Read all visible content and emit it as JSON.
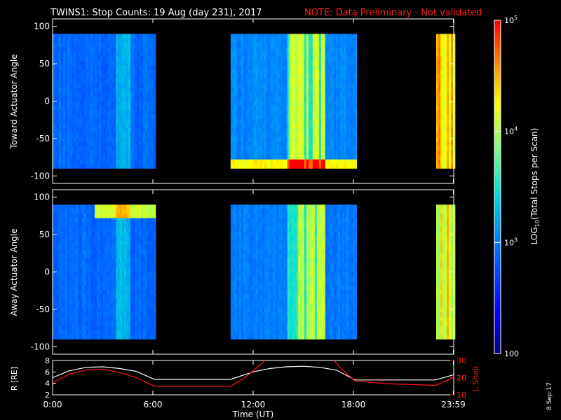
{
  "header": {
    "title": "TWINS1: Stop Counts: 19 Aug (day 231), 2017",
    "note": "NOTE: Data Preliminary - Not validated",
    "note_color": "#ff2020",
    "datestamp": "8 Sep 17"
  },
  "chart_data": [
    {
      "type": "heatmap",
      "ylabel": "Toward Actuator Angle",
      "ylim": [
        -110,
        110
      ],
      "yticks": [
        -100,
        -50,
        0,
        50,
        100
      ],
      "xlim": [
        0,
        24
      ],
      "data_extent": {
        "y": [
          -90,
          90
        ]
      },
      "segments": [
        {
          "t_start": 0.0,
          "t_end": 6.15,
          "base_level": 0.3
        },
        {
          "t_start": 10.65,
          "t_end": 18.15,
          "base_level": 0.35
        },
        {
          "t_start": 22.95,
          "t_end": 24.0,
          "base_level": 0.82
        }
      ]
    },
    {
      "type": "heatmap",
      "ylabel": "Away Actuator Angle",
      "ylim": [
        -110,
        110
      ],
      "yticks": [
        -100,
        -50,
        0,
        50,
        100
      ],
      "xlim": [
        0,
        24
      ],
      "data_extent": {
        "y": [
          -90,
          90
        ]
      },
      "segments": [
        {
          "t_start": 0.0,
          "t_end": 6.15,
          "base_level": 0.3
        },
        {
          "t_start": 10.65,
          "t_end": 18.15,
          "base_level": 0.33
        },
        {
          "t_start": 22.95,
          "t_end": 24.0,
          "base_level": 0.75
        }
      ]
    },
    {
      "type": "line",
      "xlabel": "Time (UT)",
      "xticks": [
        {
          "t": 0,
          "label": "0:00"
        },
        {
          "t": 6,
          "label": "6:00"
        },
        {
          "t": 12,
          "label": "12:00"
        },
        {
          "t": 18,
          "label": "18:00"
        },
        {
          "t": 23.98,
          "label": "23:59"
        }
      ],
      "ylabel_left": "R [RE]",
      "ylim_left": [
        2,
        8
      ],
      "yticks_left": [
        2,
        4,
        6,
        8
      ],
      "ylabel_right": "L Shell",
      "ylim_right": [
        10,
        30
      ],
      "yticks_right": [
        10,
        20,
        30
      ],
      "series": [
        {
          "axis": "left",
          "color": "#ffffff",
          "x": [
            0,
            1,
            2,
            3,
            4,
            5,
            6.1,
            8,
            10.65,
            12,
            13,
            14,
            15,
            16,
            17,
            18.1,
            20,
            22.9,
            24
          ],
          "y": [
            5.0,
            6.2,
            6.8,
            6.9,
            6.6,
            6.1,
            4.7,
            4.7,
            4.7,
            6.0,
            6.6,
            6.9,
            7.0,
            6.8,
            6.3,
            4.6,
            4.6,
            4.6,
            5.5
          ]
        },
        {
          "axis": "right",
          "color": "#ff1a1a",
          "x": [
            0,
            1,
            2,
            3,
            4,
            5,
            6.1,
            8,
            10.65,
            11.5,
            12.5,
            13.0,
            16.6,
            17.2,
            18.1,
            20,
            22.9,
            24
          ],
          "y": [
            17,
            22,
            24.5,
            25,
            23,
            20,
            15,
            15,
            15,
            20,
            28,
            33,
            33,
            26,
            18,
            16.5,
            15.5,
            20
          ]
        }
      ]
    }
  ],
  "colorbar": {
    "label": "LOG10(Total Stops per Scan)",
    "ticks": [
      {
        "label": "100",
        "value": 100
      },
      {
        "label": "10^3",
        "value": 1000
      },
      {
        "label": "10^4",
        "value": 10000
      },
      {
        "label": "10^5",
        "value": 100000
      }
    ],
    "range": [
      100,
      100000
    ],
    "log": true
  }
}
